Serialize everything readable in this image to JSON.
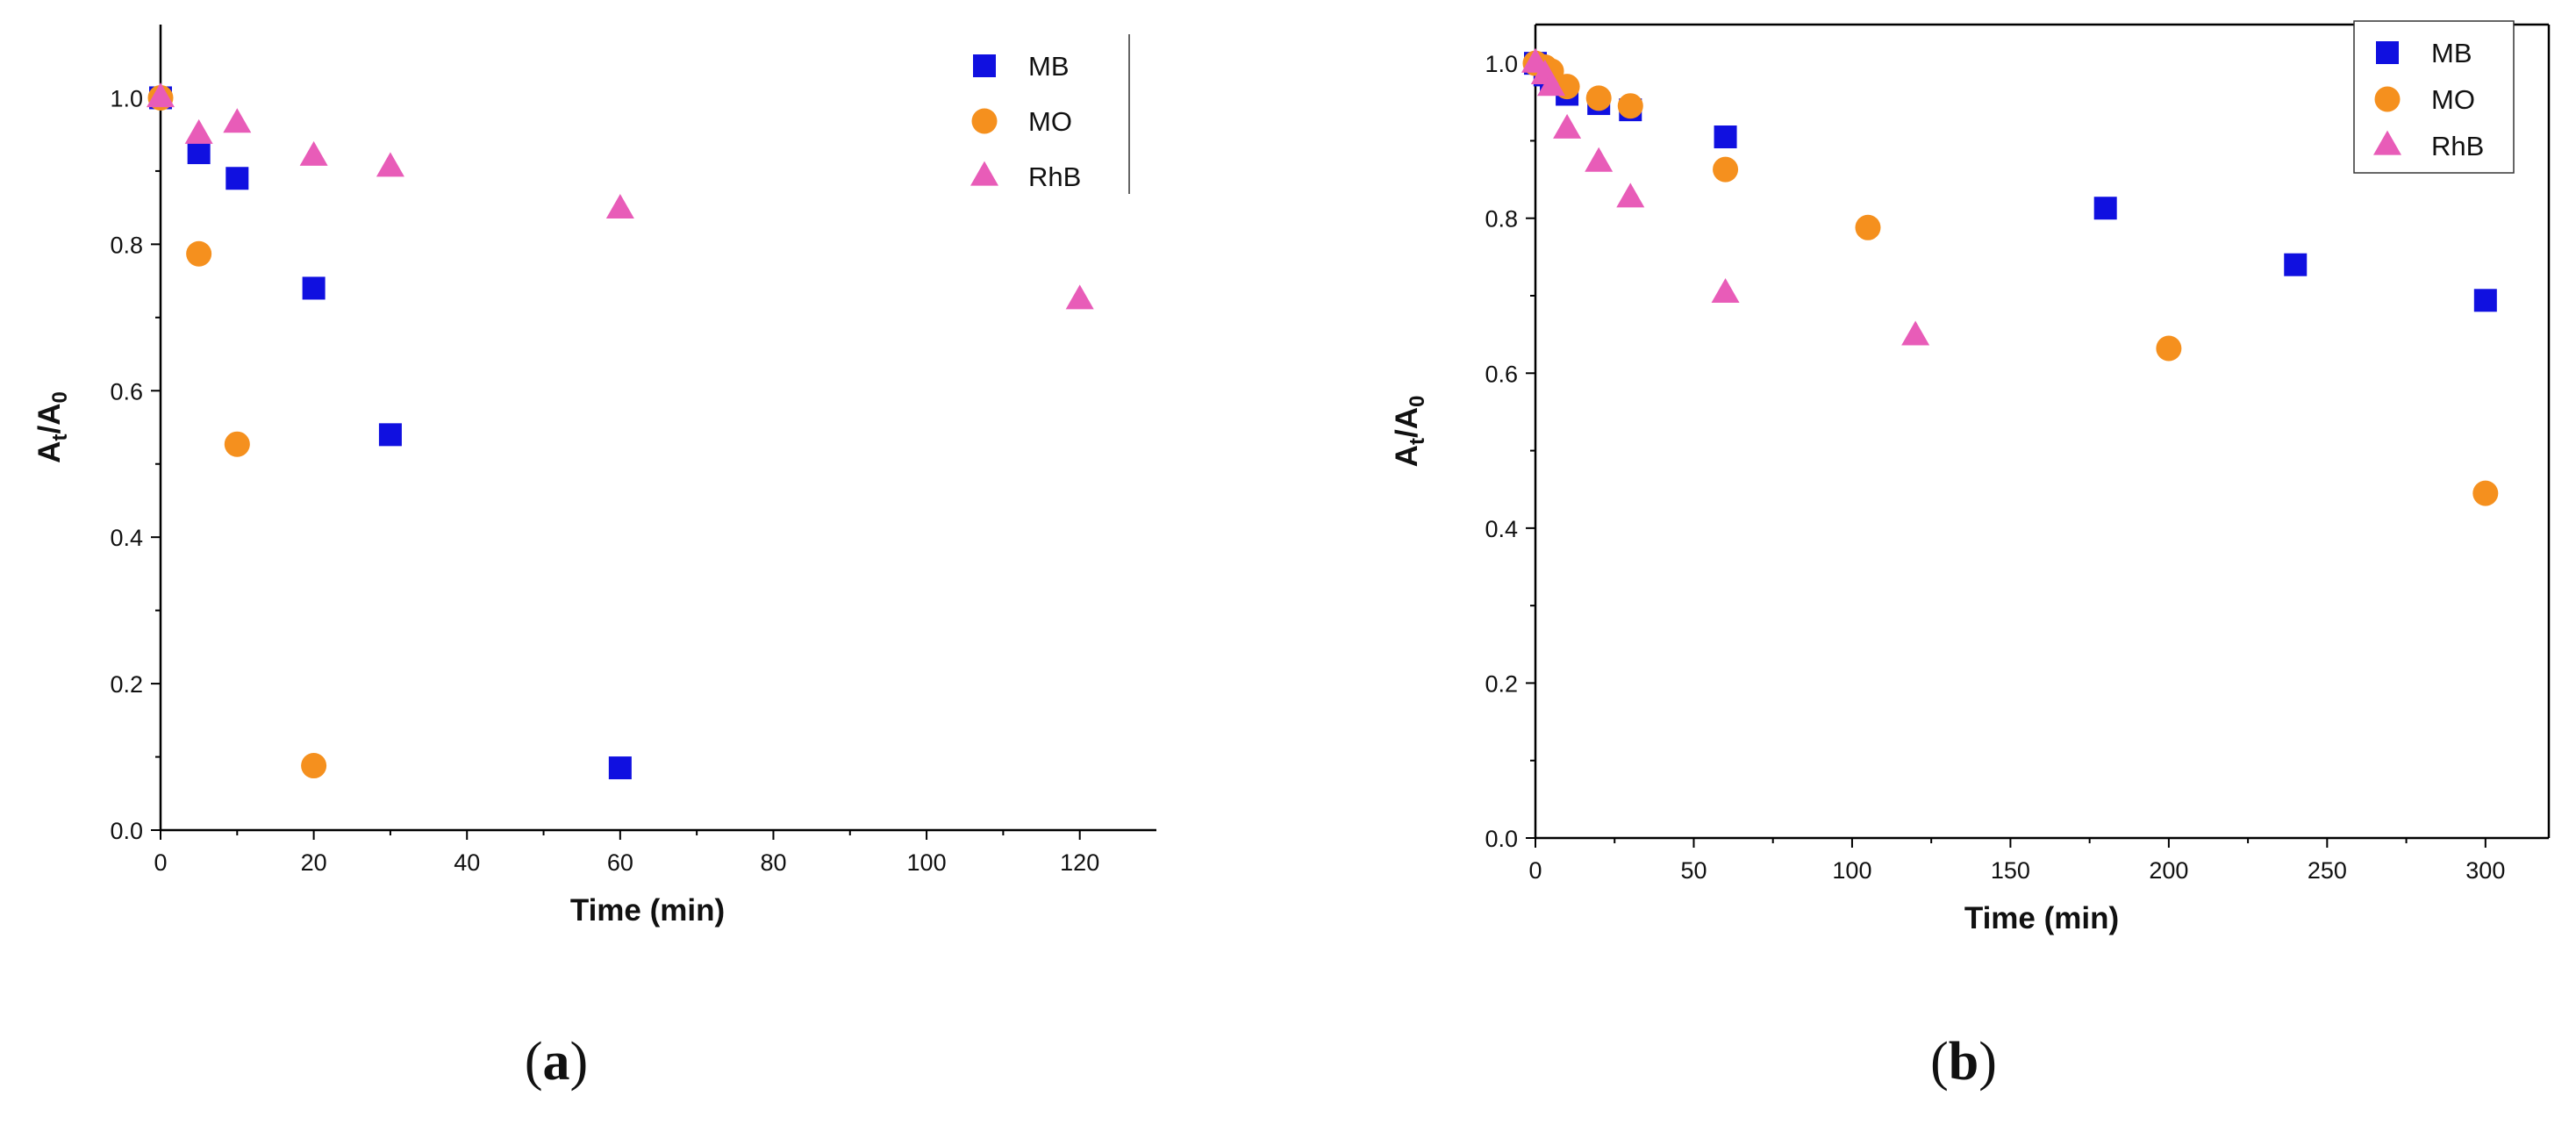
{
  "figure": {
    "panel_a_letter": "a",
    "panel_b_letter": "b"
  },
  "chart_data": [
    {
      "type": "scatter",
      "panel": "a",
      "title": "",
      "xlabel": "Time (min)",
      "ylabel": "At/A0",
      "xlim": [
        0,
        130
      ],
      "ylim": [
        0,
        1.1
      ],
      "xticks": [
        0,
        20,
        40,
        60,
        80,
        100,
        120
      ],
      "yticks": [
        "0.0",
        "0.2",
        "0.4",
        "0.6",
        "0.8",
        "1.0"
      ],
      "legend_position": "top-right",
      "grid": false,
      "series": [
        {
          "name": "MB",
          "marker": "square",
          "color": "#1010e0",
          "points": [
            [
              0,
              1.0
            ],
            [
              5,
              0.925
            ],
            [
              10,
              0.89
            ],
            [
              20,
              0.74
            ],
            [
              30,
              0.54
            ],
            [
              60,
              0.085
            ]
          ]
        },
        {
          "name": "MO",
          "marker": "circle",
          "color": "#f5901e",
          "points": [
            [
              0,
              1.0
            ],
            [
              5,
              0.787
            ],
            [
              10,
              0.527
            ],
            [
              20,
              0.088
            ]
          ]
        },
        {
          "name": "RhB",
          "marker": "triangle",
          "color": "#e85cb8",
          "points": [
            [
              0,
              1.0
            ],
            [
              5,
              0.95
            ],
            [
              10,
              0.965
            ],
            [
              20,
              0.92
            ],
            [
              30,
              0.905
            ],
            [
              60,
              0.848
            ],
            [
              120,
              0.724
            ]
          ]
        }
      ]
    },
    {
      "type": "scatter",
      "panel": "b",
      "title": "",
      "xlabel": "Time (min)",
      "ylabel": "At/A0",
      "xlim": [
        0,
        320
      ],
      "ylim": [
        0,
        1.05
      ],
      "xticks": [
        0,
        50,
        100,
        150,
        200,
        250,
        300
      ],
      "yticks": [
        "0.0",
        "0.2",
        "0.4",
        "0.6",
        "0.8",
        "1.0"
      ],
      "legend_position": "top-right",
      "grid": false,
      "series": [
        {
          "name": "MB",
          "marker": "square",
          "color": "#1010e0",
          "points": [
            [
              0,
              1.0
            ],
            [
              3,
              0.985
            ],
            [
              5,
              0.975
            ],
            [
              10,
              0.96
            ],
            [
              20,
              0.948
            ],
            [
              30,
              0.94
            ],
            [
              60,
              0.905
            ],
            [
              180,
              0.813
            ],
            [
              240,
              0.74
            ],
            [
              300,
              0.694
            ]
          ]
        },
        {
          "name": "MO",
          "marker": "circle",
          "color": "#f5901e",
          "points": [
            [
              0,
              1.0
            ],
            [
              3,
              0.995
            ],
            [
              5,
              0.99
            ],
            [
              10,
              0.97
            ],
            [
              20,
              0.955
            ],
            [
              30,
              0.945
            ],
            [
              60,
              0.863
            ],
            [
              105,
              0.788
            ],
            [
              200,
              0.632
            ],
            [
              300,
              0.445
            ]
          ]
        },
        {
          "name": "RhB",
          "marker": "triangle",
          "color": "#e85cb8",
          "points": [
            [
              0,
              1.0
            ],
            [
              3,
              0.985
            ],
            [
              5,
              0.97
            ],
            [
              10,
              0.915
            ],
            [
              20,
              0.872
            ],
            [
              30,
              0.826
            ],
            [
              60,
              0.703
            ],
            [
              120,
              0.648
            ]
          ]
        }
      ]
    }
  ]
}
